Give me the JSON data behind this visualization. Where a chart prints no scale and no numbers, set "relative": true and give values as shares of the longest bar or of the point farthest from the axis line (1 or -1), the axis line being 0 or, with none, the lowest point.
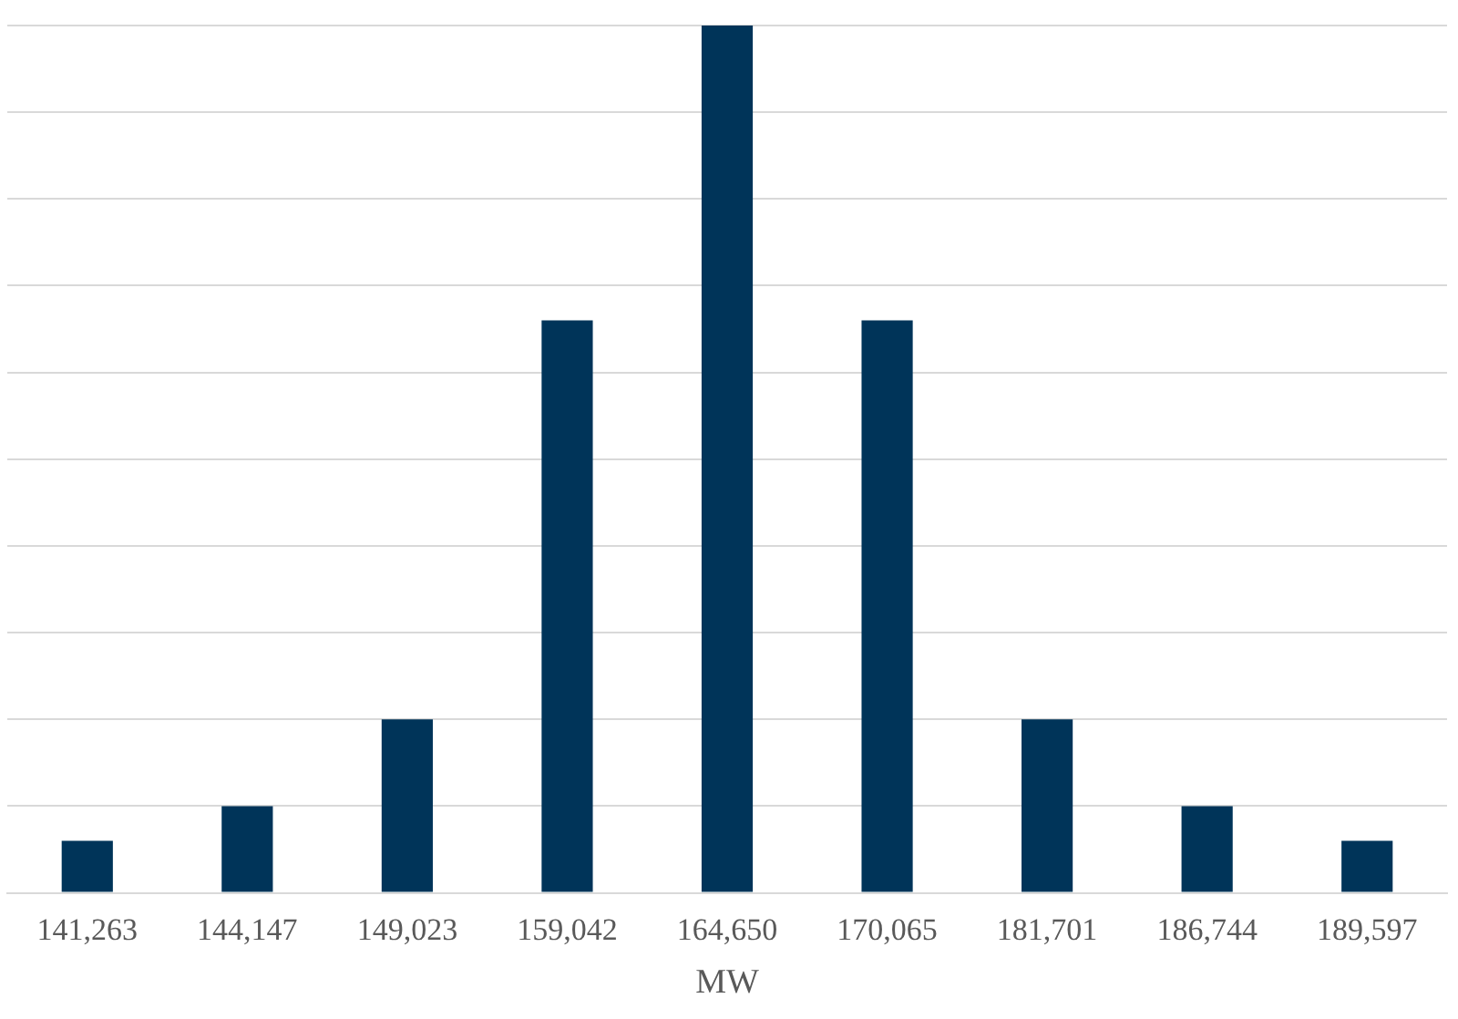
{
  "chart_data": {
    "type": "bar",
    "xlabel": "MW",
    "relative": true,
    "grid": "y",
    "categories": [
      "141,263",
      "144,147",
      "149,023",
      "159,042",
      "164,650",
      "170,065",
      "181,701",
      "186,744",
      "189,597"
    ],
    "values": [
      0.06,
      0.1,
      0.2,
      0.66,
      1,
      0.66,
      0.2,
      0.1,
      0.06
    ],
    "color": "#003459"
  }
}
